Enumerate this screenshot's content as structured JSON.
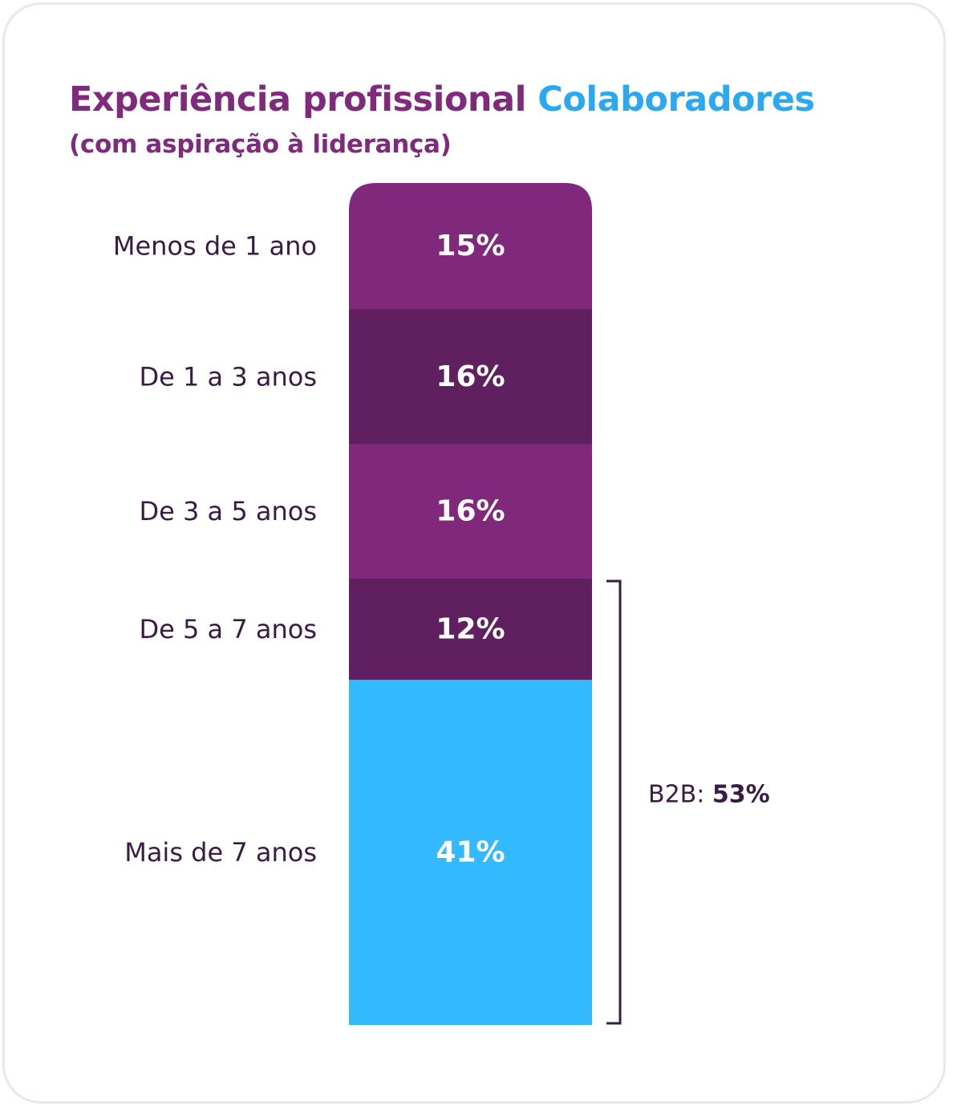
{
  "title": {
    "part1": "Experiência profissional",
    "part2": "Colaboradores",
    "subtitle": "(com aspiração à liderança)"
  },
  "colors": {
    "title_purple": "#7f2a7d",
    "title_blue": "#2aa9f0",
    "label_dark": "#3b1a45",
    "segment_purple": "#80287b",
    "segment_dark": "#601f5f",
    "segment_blue": "#33b9ff",
    "value_text": "#ffffff"
  },
  "chart_data": {
    "type": "bar",
    "orientation": "stacked-vertical",
    "title": "Experiência profissional Colaboradores (com aspiração à liderança)",
    "unit": "%",
    "categories": [
      "Menos de 1 ano",
      "De 1 a 3 anos",
      "De 3 a 5 anos",
      "De 5 a 7 anos",
      "Mais de 7 anos"
    ],
    "values": [
      15,
      16,
      16,
      12,
      41
    ],
    "value_labels": [
      "15%",
      "16%",
      "16%",
      "12%",
      "41%"
    ],
    "segment_colors": [
      "#80287b",
      "#601f5f",
      "#80287b",
      "#601f5f",
      "#33b9ff"
    ],
    "legend": "none",
    "grid": false,
    "annotation": {
      "bracket_covers": [
        "De 5 a 7 anos",
        "Mais de 7 anos"
      ],
      "prefix": "B2B:",
      "value": "53%"
    }
  }
}
